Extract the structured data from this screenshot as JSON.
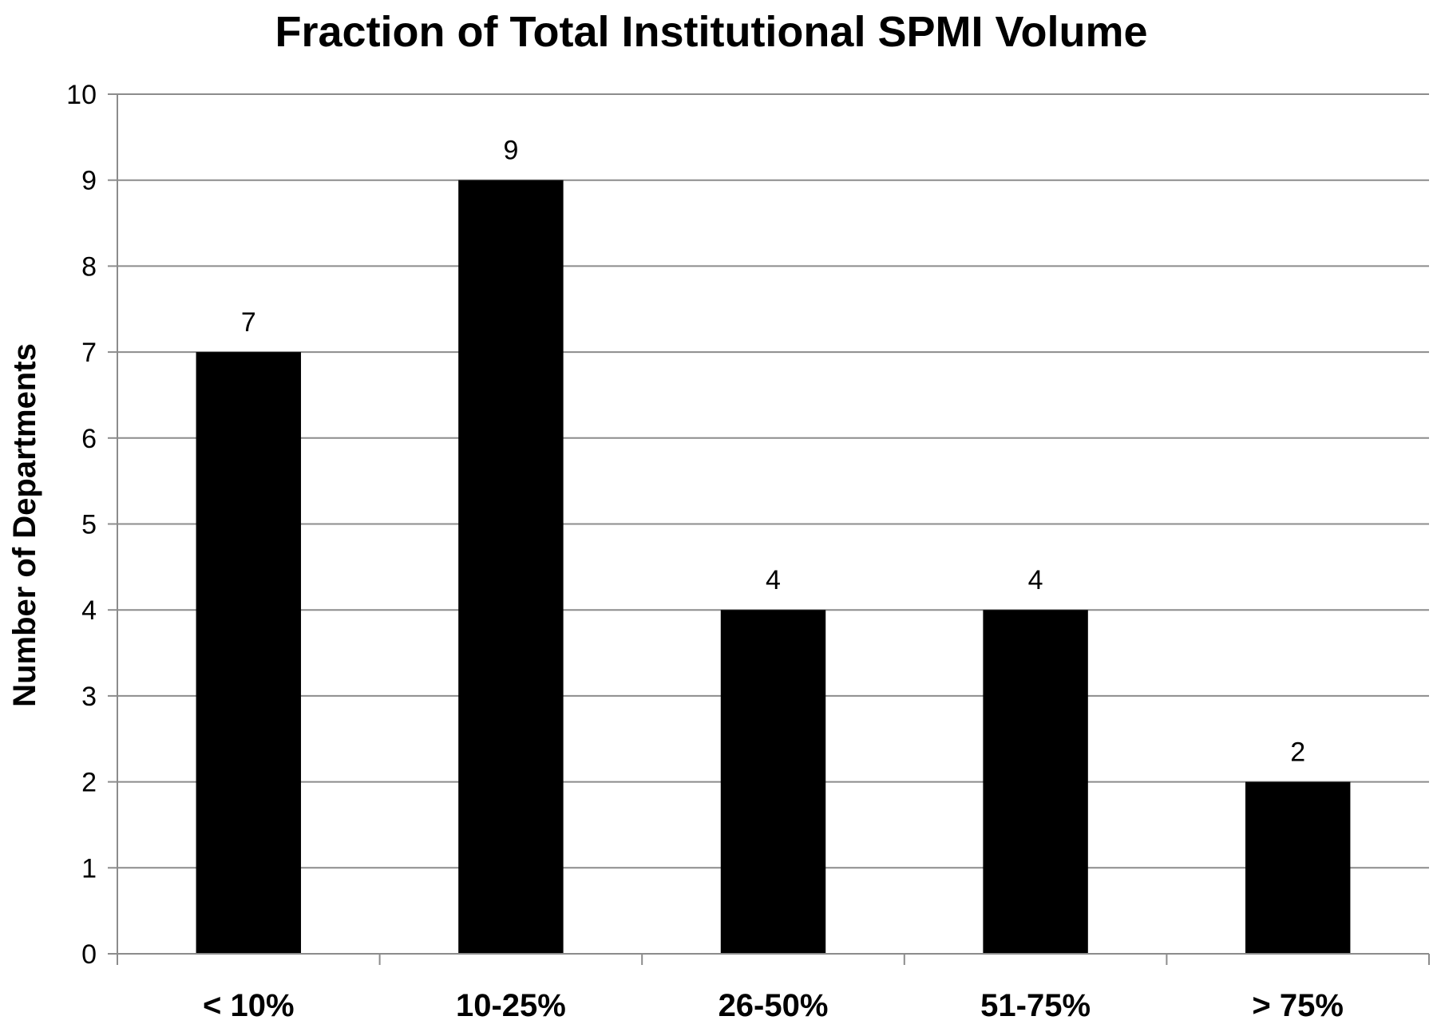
{
  "chart_data": {
    "type": "bar",
    "title": "Fraction of Total Institutional SPMI Volume",
    "xlabel": "",
    "ylabel": "Number of Departments",
    "categories": [
      "< 10%",
      "10-25%",
      "26-50%",
      "51-75%",
      "> 75%"
    ],
    "values": [
      7,
      9,
      4,
      4,
      2
    ],
    "ylim": [
      0,
      10
    ],
    "yticks": [
      0,
      1,
      2,
      3,
      4,
      5,
      6,
      7,
      8,
      9,
      10
    ],
    "grid": true,
    "legend": "none",
    "bar_color": "#000000",
    "grid_color": "#8c8c8c"
  }
}
